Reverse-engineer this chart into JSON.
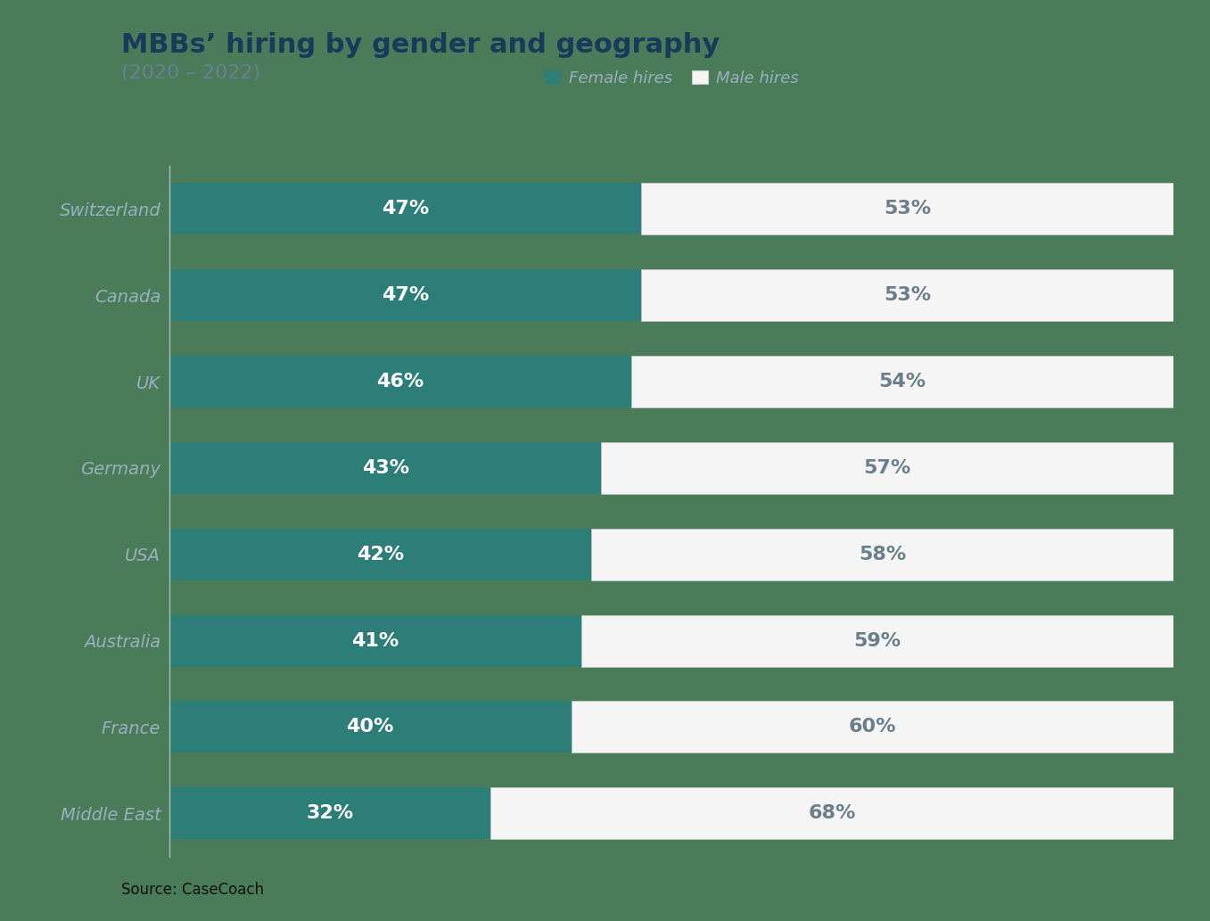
{
  "title_line1": "MBBs’ hiring by gender and geography",
  "title_line2": "(2020 – 2022)",
  "source": "Source: CaseCoach",
  "categories": [
    "Switzerland",
    "Canada",
    "UK",
    "Germany",
    "USA",
    "Australia",
    "France",
    "Middle East"
  ],
  "female_pct": [
    47,
    47,
    46,
    43,
    42,
    41,
    40,
    32
  ],
  "male_pct": [
    53,
    53,
    54,
    57,
    58,
    59,
    60,
    68
  ],
  "female_color": "#2d7d78",
  "male_color": "#f5f5f5",
  "male_edge_color": "#cccccc",
  "background_color": "#4a7c59",
  "title_color": "#1a3a5c",
  "subtitle_color": "#6a7f96",
  "label_color_female": "#ffffff",
  "label_color_male": "#6a7f8a",
  "y_label_color": "#9aafc0",
  "legend_female_label": "Female hires",
  "legend_male_label": "Male hires",
  "bar_height": 0.6,
  "fig_width": 13.57,
  "fig_height": 10.33,
  "title_fontsize": 22,
  "subtitle_fontsize": 16,
  "label_fontsize": 16,
  "ytick_fontsize": 14,
  "legend_fontsize": 13,
  "source_fontsize": 12
}
